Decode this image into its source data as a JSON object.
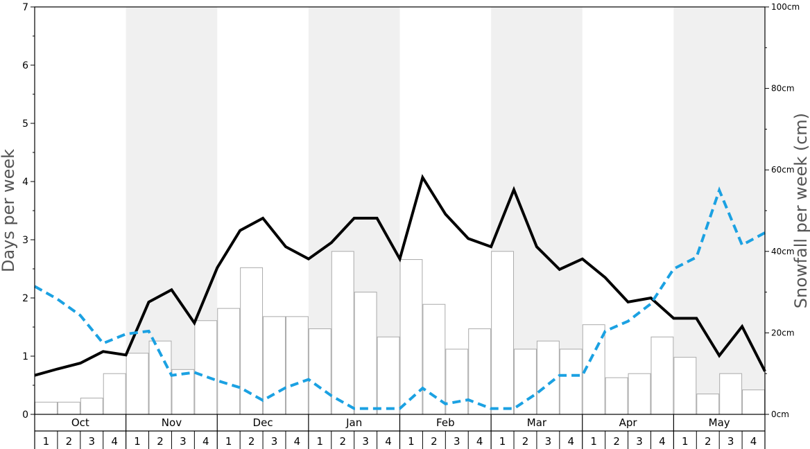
{
  "chart_data": {
    "type": "bar+line",
    "title": "",
    "y_left": {
      "label": "Days per week",
      "range": [
        0,
        7
      ],
      "ticks": [
        0,
        1,
        2,
        3,
        4,
        5,
        6,
        7
      ]
    },
    "y_right": {
      "label": "Snowfall per week (cm)",
      "range": [
        0,
        100
      ],
      "ticks": [
        "0cm",
        "20cm",
        "40cm",
        "60cm",
        "80cm",
        "100cm"
      ]
    },
    "months": [
      "Oct",
      "Nov",
      "Dec",
      "Jan",
      "Feb",
      "Mar",
      "Apr",
      "May"
    ],
    "week_labels": [
      "1",
      "2",
      "3",
      "4"
    ],
    "shaded_months": [
      "Nov",
      "Jan",
      "Mar",
      "May"
    ],
    "shade_color": "#f0f0f0",
    "series": [
      {
        "kind": "bar",
        "axis": "right",
        "unit": "cm",
        "color": "#ffffff",
        "stroke": "#aaaaaa",
        "values": [
          3,
          3,
          4,
          10,
          15,
          18,
          11,
          23,
          26,
          36,
          24,
          24,
          21,
          40,
          30,
          19,
          38,
          27,
          16,
          21,
          40,
          16,
          18,
          16,
          22,
          9,
          10,
          19,
          14,
          5,
          10,
          6
        ]
      },
      {
        "kind": "line",
        "axis": "left",
        "style": "solid",
        "color": "#000000",
        "values": [
          0.67,
          0.78,
          0.88,
          1.08,
          1.02,
          1.93,
          2.14,
          1.57,
          2.52,
          3.16,
          3.37,
          2.88,
          2.67,
          2.95,
          3.37,
          3.37,
          2.67,
          4.07,
          3.44,
          3.02,
          2.88,
          3.86,
          2.88,
          2.49,
          2.67,
          2.35,
          1.93,
          2.0,
          1.65,
          1.65,
          1.01,
          1.51,
          0.74
        ]
      },
      {
        "kind": "line",
        "axis": "left",
        "style": "dashed",
        "color": "#1ba1e2",
        "values": [
          2.2,
          1.98,
          1.7,
          1.22,
          1.38,
          1.43,
          0.67,
          0.72,
          0.58,
          0.46,
          0.24,
          0.46,
          0.6,
          0.32,
          0.1,
          0.1,
          0.1,
          0.45,
          0.18,
          0.25,
          0.1,
          0.1,
          0.36,
          0.67,
          0.67,
          1.43,
          1.6,
          1.9,
          2.5,
          2.7,
          3.85,
          2.91,
          3.12
        ]
      }
    ],
    "line_x_positions": [
      0,
      1,
      2,
      3,
      4,
      5,
      6,
      7,
      8,
      9,
      10,
      11,
      12,
      13,
      14,
      15,
      16,
      17,
      18,
      19,
      20,
      21,
      22,
      23,
      24,
      25,
      26,
      27,
      28,
      29,
      30,
      31,
      32
    ]
  }
}
